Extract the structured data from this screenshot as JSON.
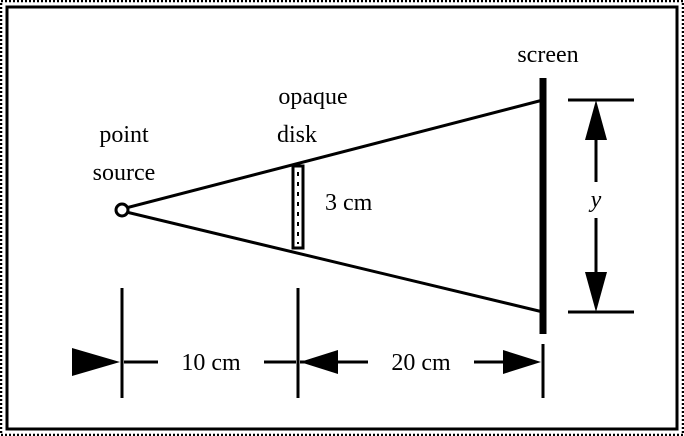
{
  "labels": {
    "point_source_line1": "point",
    "point_source_line2": "source",
    "disk_line1": "opaque",
    "disk_line2": "disk",
    "disk_size": "3 cm",
    "screen": "screen",
    "y": "y",
    "dist_source_disk": "10 cm",
    "dist_disk_screen": "20 cm"
  }
}
